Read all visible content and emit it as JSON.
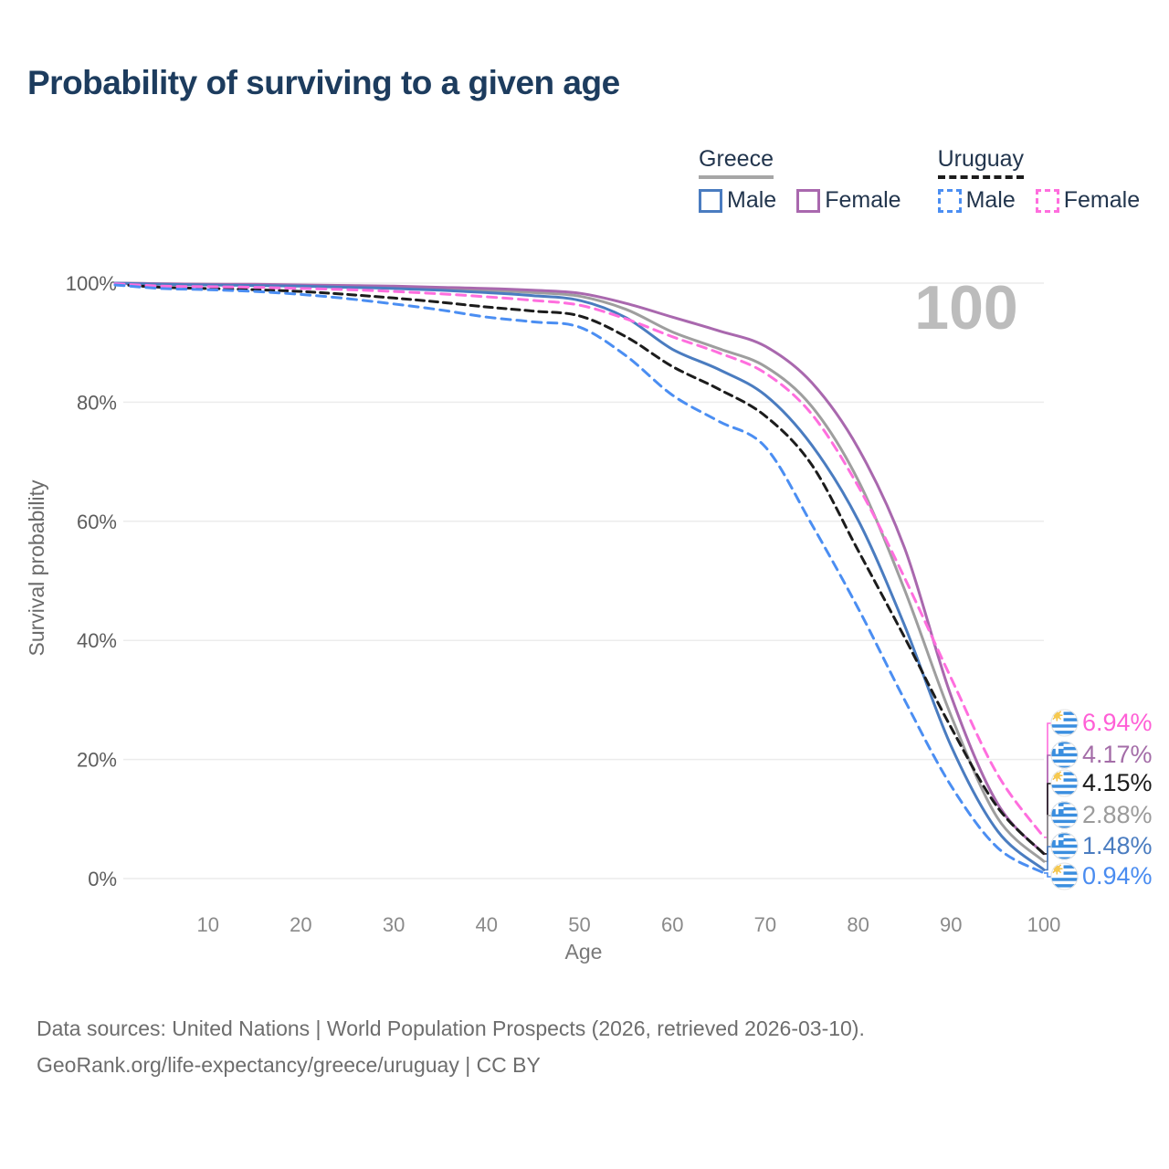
{
  "title": "Probability of surviving to a given age",
  "watermark": "100",
  "legend": {
    "groups": [
      {
        "label": "Greece",
        "line_style": "solid",
        "line_color": "#a6a6a6",
        "items": [
          {
            "label": "Male",
            "color": "#4a7cc0",
            "dashed": false
          },
          {
            "label": "Female",
            "color": "#a968ae",
            "dashed": false
          }
        ]
      },
      {
        "label": "Uruguay",
        "line_style": "dashed",
        "line_color": "#1c1c1c",
        "items": [
          {
            "label": "Male",
            "color": "#4b8ef2",
            "dashed": true
          },
          {
            "label": "Female",
            "color": "#ff6ede",
            "dashed": true
          }
        ]
      }
    ]
  },
  "chart_data": {
    "type": "line",
    "title": "Probability of surviving to a given age",
    "xlabel": "Age",
    "ylabel": "Survival probability",
    "xlim": [
      0,
      100
    ],
    "ylim": [
      0,
      100
    ],
    "grid": "horizontal",
    "x_ticks": [
      10,
      20,
      30,
      40,
      50,
      60,
      70,
      80,
      90,
      100
    ],
    "y_ticks": [
      {
        "value": 100,
        "label": "100%"
      },
      {
        "value": 80,
        "label": "80%"
      },
      {
        "value": 60,
        "label": "60%"
      },
      {
        "value": 40,
        "label": "40%"
      },
      {
        "value": 20,
        "label": "20%"
      },
      {
        "value": 0,
        "label": "0%"
      }
    ],
    "x": [
      0,
      5,
      10,
      15,
      20,
      25,
      30,
      35,
      40,
      45,
      50,
      55,
      60,
      65,
      70,
      75,
      80,
      85,
      90,
      95,
      100
    ],
    "series": [
      {
        "name": "Greece",
        "country": "Greece",
        "sex": "Both",
        "color": "#9e9e9e",
        "dash": null,
        "values": [
          100,
          99.9,
          99.8,
          99.7,
          99.6,
          99.5,
          99.3,
          99.1,
          98.8,
          98.4,
          97.8,
          95.6,
          91.8,
          89.0,
          86.0,
          79.3,
          66.9,
          48.5,
          27.4,
          10.2,
          2.88
        ],
        "end_label": {
          "text": "2.88%",
          "color": "#9b9b9b",
          "flag": "greece"
        }
      },
      {
        "name": "Greece Female",
        "country": "Greece",
        "sex": "Female",
        "color": "#a968ae",
        "dash": null,
        "values": [
          100,
          99.9,
          99.8,
          99.8,
          99.7,
          99.6,
          99.5,
          99.3,
          99.1,
          98.8,
          98.3,
          96.6,
          94.3,
          92.0,
          89.4,
          83.3,
          72.3,
          55.5,
          30.7,
          12.6,
          4.17
        ],
        "end_label": {
          "text": "4.17%",
          "color": "#a46da8",
          "flag": "greece"
        }
      },
      {
        "name": "Greece Male",
        "country": "Greece",
        "sex": "Male",
        "color": "#4a7cc0",
        "dash": null,
        "values": [
          100,
          99.8,
          99.7,
          99.6,
          99.5,
          99.3,
          99.1,
          98.8,
          98.4,
          97.9,
          97.1,
          94.2,
          88.9,
          85.5,
          81.2,
          72.8,
          60.2,
          42.5,
          22.3,
          8.0,
          1.48
        ],
        "end_label": {
          "text": "1.48%",
          "color": "#4a7cc0",
          "flag": "greece"
        }
      },
      {
        "name": "Uruguay",
        "country": "Uruguay",
        "sex": "Both",
        "color": "#1c1c1c",
        "dash": "9 6",
        "values": [
          99.8,
          99.3,
          99.1,
          98.9,
          98.6,
          98.1,
          97.5,
          96.8,
          96.0,
          95.3,
          94.5,
          91.0,
          86.0,
          82.2,
          77.7,
          69.5,
          55.1,
          40.5,
          25.4,
          12.0,
          4.15
        ],
        "end_label": {
          "text": "4.15%",
          "color": "#1b1b1b",
          "flag": "uruguay"
        }
      },
      {
        "name": "Uruguay Female",
        "country": "Uruguay",
        "sex": "Female",
        "color": "#ff6ede",
        "dash": "10 7",
        "values": [
          99.9,
          99.5,
          99.4,
          99.3,
          99.1,
          98.9,
          98.6,
          98.2,
          97.7,
          97.1,
          96.3,
          94.0,
          91.0,
          88.3,
          84.9,
          78.0,
          65.9,
          50.5,
          33.7,
          17.5,
          6.94
        ],
        "end_label": {
          "text": "6.94%",
          "color": "#ff5fd6",
          "flag": "uruguay"
        }
      },
      {
        "name": "Uruguay Male",
        "country": "Uruguay",
        "sex": "Male",
        "color": "#4b8ef2",
        "dash": "10 7",
        "values": [
          99.7,
          99.1,
          98.9,
          98.6,
          98.1,
          97.4,
          96.5,
          95.5,
          94.3,
          93.5,
          92.6,
          87.8,
          81.2,
          76.8,
          72.5,
          59.5,
          45.4,
          30.0,
          15.6,
          5.2,
          0.94
        ],
        "end_label": {
          "text": "0.94%",
          "color": "#4a8cf0",
          "flag": "uruguay"
        }
      }
    ],
    "end_label_order": [
      "Uruguay Female",
      "Greece Female",
      "Uruguay",
      "Greece",
      "Greece Male",
      "Uruguay Male"
    ],
    "legend_position": "top-right"
  },
  "footer": {
    "line1": "Data sources: United Nations | World Population Prospects (2026, retrieved 2026-03-10).",
    "line2": "GeoRank.org/life-expectancy/greece/uruguay | CC BY"
  }
}
